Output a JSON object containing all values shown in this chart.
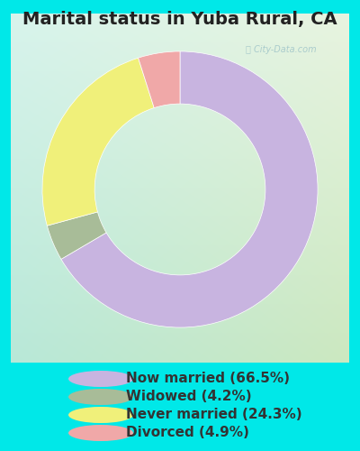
{
  "title": "Marital status in Yuba Rural, CA",
  "slices": [
    66.5,
    4.2,
    24.3,
    4.9
  ],
  "labels": [
    "Now married (66.5%)",
    "Widowed (4.2%)",
    "Never married (24.3%)",
    "Divorced (4.9%)"
  ],
  "colors": [
    "#c8b4e0",
    "#a8bc98",
    "#f0f07a",
    "#f0a8a8"
  ],
  "outer_bg": "#00e8e8",
  "chart_bg_left": "#c0ece0",
  "chart_bg_right": "#e0ecd0",
  "watermark_color": "#aacccc",
  "title_fontsize": 14,
  "legend_fontsize": 11,
  "donut_width": 0.38,
  "startangle": 90
}
